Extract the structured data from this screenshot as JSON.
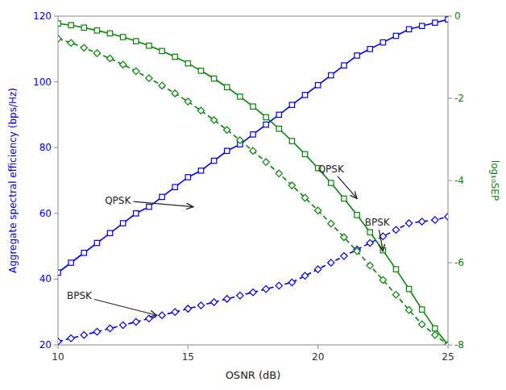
{
  "chart_data": {
    "type": "line",
    "xlabel": "OSNR (dB)",
    "ylabel": "Aggregate spectral efficiency (bps/Hz)",
    "y2label": "log₁₀SEP",
    "x": [
      10,
      10.5,
      11,
      11.5,
      12,
      12.5,
      13,
      13.5,
      14,
      14.5,
      15,
      15.5,
      16,
      16.5,
      17,
      17.5,
      18,
      18.5,
      19,
      19.5,
      20,
      20.5,
      21,
      21.5,
      22,
      22.5,
      23,
      23.5,
      24,
      24.5,
      25
    ],
    "series": [
      {
        "color": "#0000EE",
        "marker": "square",
        "line_style": "solid",
        "axis": "y",
        "values": [
          42,
          45,
          48,
          51,
          54,
          57,
          60,
          62,
          65,
          68,
          71,
          73,
          76,
          79,
          81,
          84,
          87,
          90,
          93,
          96,
          99,
          102,
          105,
          108,
          110,
          112,
          114,
          116,
          117,
          118,
          119
        ]
      },
      {
        "color": "#0000EE",
        "marker": "diamond",
        "line_style": "dashed",
        "axis": "y",
        "values": [
          21,
          22,
          23,
          24,
          25,
          26,
          27,
          28,
          29,
          30,
          31,
          32,
          33,
          34,
          35,
          36,
          37,
          38,
          39,
          41,
          43,
          45,
          47,
          49,
          51,
          53,
          55,
          57,
          57.5,
          58,
          59
        ]
      },
      {
        "color": "#008800",
        "marker": "square",
        "line_style": "solid",
        "axis": "y2",
        "values": [
          -0.18,
          -0.22,
          -0.28,
          -0.35,
          -0.42,
          -0.51,
          -0.61,
          -0.72,
          -0.85,
          -0.99,
          -1.15,
          -1.33,
          -1.52,
          -1.73,
          -1.96,
          -2.2,
          -2.46,
          -2.74,
          -3.04,
          -3.36,
          -3.7,
          -4.06,
          -4.44,
          -4.84,
          -5.26,
          -5.7,
          -6.16,
          -6.64,
          -7.14,
          -7.6,
          -8.0
        ]
      },
      {
        "color": "#008800",
        "marker": "diamond",
        "line_style": "dashed",
        "axis": "y2",
        "values": [
          -0.55,
          -0.65,
          -0.77,
          -0.9,
          -1.03,
          -1.18,
          -1.34,
          -1.51,
          -1.69,
          -1.88,
          -2.08,
          -2.3,
          -2.53,
          -2.77,
          -3.02,
          -3.28,
          -3.55,
          -3.83,
          -4.12,
          -4.42,
          -4.73,
          -5.05,
          -5.38,
          -5.72,
          -6.07,
          -6.42,
          -6.78,
          -7.15,
          -7.5,
          -7.76,
          -8.0
        ]
      }
    ],
    "xlim": [
      10,
      25
    ],
    "xticks": [
      10,
      15,
      20,
      25
    ],
    "ylim": [
      20,
      120
    ],
    "yticks": [
      20,
      40,
      60,
      80,
      100,
      120
    ],
    "y2lim": [
      -8,
      0
    ],
    "y2ticks": [
      0,
      -2,
      -4,
      -6,
      -8
    ],
    "grid": false,
    "annotations": [
      {
        "text": "QPSK",
        "axis": "y",
        "x": 15.2,
        "y": 62,
        "text_x": 12.8,
        "text_y": 63
      },
      {
        "text": "BPSK",
        "axis": "y",
        "x": 13.8,
        "y": 29,
        "text_x": 11.3,
        "text_y": 34
      },
      {
        "text": "QPSK",
        "axis": "y2",
        "x": 21.5,
        "y": -4.44,
        "text_x": 20.0,
        "text_y": -3.8
      },
      {
        "text": "BPSK",
        "axis": "y2",
        "x": 22.5,
        "y": -5.72,
        "text_x": 21.8,
        "text_y": -5.1
      }
    ]
  }
}
